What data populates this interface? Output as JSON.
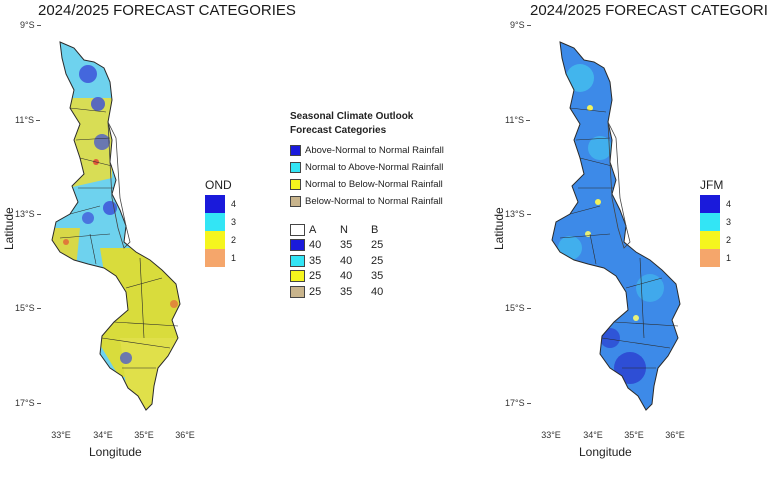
{
  "left_panel": {
    "title": "2024/2025 FORECAST CATEGORIES",
    "lat_ticks": [
      "9°S",
      "11°S",
      "13°S",
      "15°S",
      "17°S"
    ],
    "lon_ticks": [
      "33°E",
      "34°E",
      "35°E",
      "36°E"
    ],
    "xlabel": "Longitude",
    "ylabel": "Latitude",
    "scale": {
      "title": "OND",
      "levels": [
        {
          "value": "4",
          "color": "#1a1adb"
        },
        {
          "value": "3",
          "color": "#33e5f5"
        },
        {
          "value": "2",
          "color": "#f5f51e"
        },
        {
          "value": "1",
          "color": "#f5a66b"
        }
      ]
    }
  },
  "right_panel": {
    "title": "2024/2025 FORECAST CATEGORI",
    "lat_ticks": [
      "9°S",
      "11°S",
      "13°S",
      "15°S",
      "17°S"
    ],
    "lon_ticks": [
      "33°E",
      "34°E",
      "35°E",
      "36°E"
    ],
    "xlabel": "Longitude",
    "ylabel": "Latitude",
    "scale": {
      "title": "JFM",
      "levels": [
        {
          "value": "4",
          "color": "#1a1adb"
        },
        {
          "value": "3",
          "color": "#33e5f5"
        },
        {
          "value": "2",
          "color": "#f5f51e"
        },
        {
          "value": "1",
          "color": "#f5a66b"
        }
      ]
    }
  },
  "legend": {
    "title_line1": "Seasonal Climate Outlook",
    "title_line2": "Forecast Categories",
    "categories": [
      {
        "label": "Above-Normal to Normal Rainfall",
        "color": "#1a1adb"
      },
      {
        "label": "Normal to Above-Normal Rainfall",
        "color": "#33e5f5"
      },
      {
        "label": "Normal to Below-Normal Rainfall",
        "color": "#f5f51e"
      },
      {
        "label": "Below-Normal to Normal Rainfall",
        "color": "#c8b48c"
      }
    ],
    "table": {
      "headers": [
        "A",
        "N",
        "B"
      ],
      "rows": [
        {
          "color": "#1a1adb",
          "values": [
            "40",
            "35",
            "25"
          ]
        },
        {
          "color": "#33e5f5",
          "values": [
            "35",
            "40",
            "25"
          ]
        },
        {
          "color": "#f5f51e",
          "values": [
            "25",
            "40",
            "35"
          ]
        },
        {
          "color": "#c8b48c",
          "values": [
            "25",
            "35",
            "40"
          ]
        }
      ]
    }
  },
  "colors": {
    "ond_base": "#6ed2ee",
    "ond_yellow": "#dede40",
    "jfm_base": "#3d8ae8",
    "district_line": "#2a2a2a",
    "lake_outline": "#444444"
  }
}
